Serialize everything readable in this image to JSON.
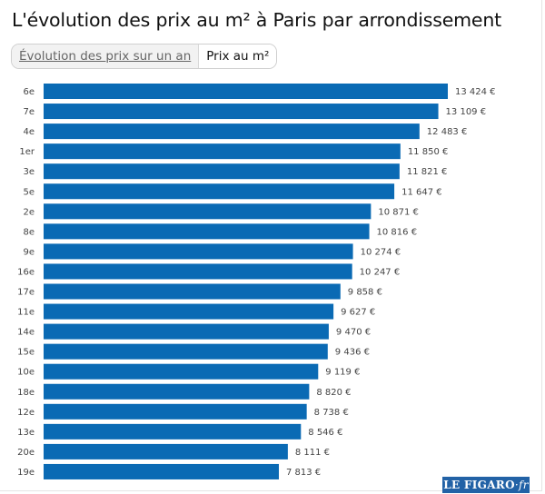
{
  "title": "L'évolution des prix au m² à Paris par arrondissement",
  "tabs": [
    {
      "label": "Évolution des prix sur un an",
      "active": false
    },
    {
      "label": "Prix au m²",
      "active": true
    }
  ],
  "logo": "LE FIGARO·fr",
  "colors": {
    "bar": "#0a6ab4"
  },
  "chart_data": {
    "type": "bar",
    "orientation": "horizontal",
    "title": "L'évolution des prix au m² à Paris par arrondissement",
    "xlabel": "",
    "ylabel": "",
    "xlim": [
      0,
      13424
    ],
    "categories": [
      "6e",
      "7e",
      "4e",
      "1er",
      "3e",
      "5e",
      "2e",
      "8e",
      "9e",
      "16e",
      "17e",
      "11e",
      "14e",
      "15e",
      "10e",
      "18e",
      "12e",
      "13e",
      "20e",
      "19e"
    ],
    "values": [
      13424,
      13109,
      12483,
      11850,
      11821,
      11647,
      10871,
      10816,
      10274,
      10247,
      9858,
      9627,
      9470,
      9436,
      9119,
      8820,
      8738,
      8546,
      8111,
      7813
    ],
    "value_labels": [
      "13 424 €",
      "13 109 €",
      "12 483 €",
      "11 850 €",
      "11 821 €",
      "11 647 €",
      "10 871 €",
      "10 816 €",
      "10 274 €",
      "10 247 €",
      "9 858 €",
      "9 627 €",
      "9 470 €",
      "9 436 €",
      "9 119 €",
      "8 820 €",
      "8 738 €",
      "8 546 €",
      "8 111 €",
      "7 813 €"
    ],
    "unit": "€/m²"
  }
}
